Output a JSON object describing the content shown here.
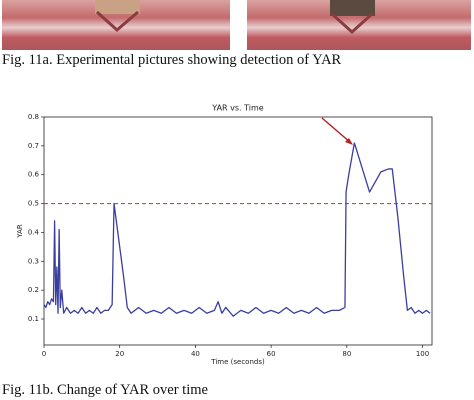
{
  "figure_a": {
    "caption": "Fig. 11a. Experimental pictures showing detection of YAR"
  },
  "chart_data": {
    "type": "line",
    "title": "YAR vs. Time",
    "xlabel": "Time (seconds)",
    "ylabel": "YAR",
    "x": [
      0,
      0.5,
      1,
      1.5,
      2,
      2.5,
      2.8,
      3.1,
      3.4,
      3.7,
      4,
      4.3,
      4.7,
      5.2,
      6,
      7,
      8,
      9,
      10,
      11,
      12,
      13,
      14,
      15,
      16,
      17,
      18,
      18.5,
      19,
      20,
      21,
      22,
      23,
      25,
      27,
      29,
      31,
      33,
      35,
      37,
      39,
      41,
      43,
      45,
      46,
      47,
      48,
      50,
      52,
      54,
      56,
      58,
      60,
      62,
      64,
      66,
      68,
      70,
      72,
      74,
      76,
      78,
      79.5,
      79.8,
      80.5,
      82,
      86,
      89,
      91,
      92,
      93.5,
      95,
      96,
      97,
      98,
      99,
      100,
      101,
      102
    ],
    "series": [
      {
        "name": "YAR",
        "color": "#3a3f9e",
        "values": [
          0.15,
          0.14,
          0.16,
          0.15,
          0.17,
          0.16,
          0.44,
          0.15,
          0.28,
          0.12,
          0.41,
          0.14,
          0.2,
          0.12,
          0.14,
          0.12,
          0.13,
          0.12,
          0.14,
          0.12,
          0.13,
          0.12,
          0.14,
          0.12,
          0.13,
          0.13,
          0.15,
          0.5,
          0.45,
          0.35,
          0.25,
          0.14,
          0.12,
          0.14,
          0.12,
          0.13,
          0.12,
          0.14,
          0.12,
          0.13,
          0.12,
          0.14,
          0.12,
          0.13,
          0.16,
          0.12,
          0.14,
          0.11,
          0.13,
          0.12,
          0.14,
          0.12,
          0.13,
          0.12,
          0.14,
          0.12,
          0.13,
          0.12,
          0.14,
          0.12,
          0.13,
          0.13,
          0.14,
          0.54,
          0.6,
          0.71,
          0.54,
          0.61,
          0.62,
          0.62,
          0.45,
          0.25,
          0.13,
          0.14,
          0.12,
          0.13,
          0.12,
          0.13,
          0.12
        ]
      }
    ],
    "threshold": {
      "value": 0.5,
      "color": "#d62728"
    },
    "xlim": [
      0,
      102.5
    ],
    "ylim": [
      0.01,
      0.8
    ],
    "xticks": [
      0,
      20,
      40,
      60,
      80,
      100
    ],
    "yticks": [
      0.1,
      0.2,
      0.3,
      0.4,
      0.5,
      0.6,
      0.7,
      0.8
    ]
  },
  "figure_b": {
    "caption": "Fig. 11b. Change of YAR over time"
  }
}
